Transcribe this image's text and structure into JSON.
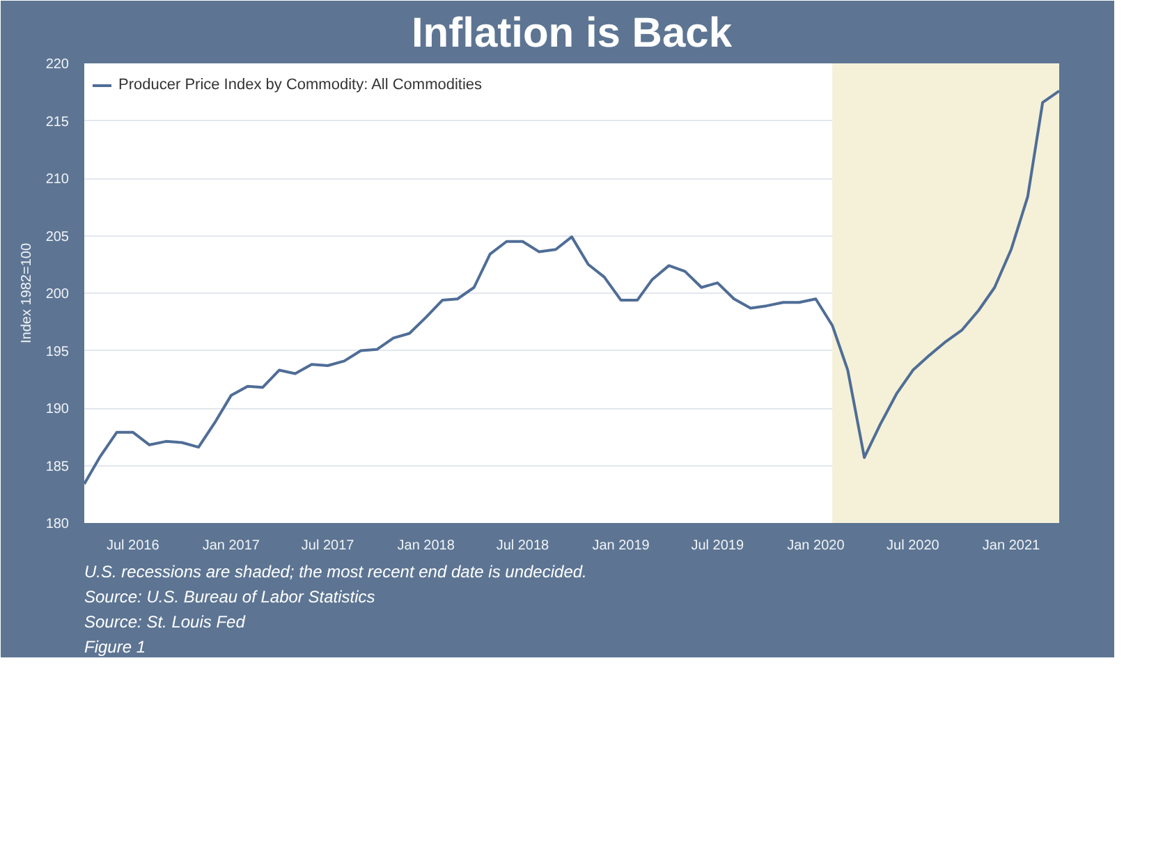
{
  "chart_data": {
    "type": "line",
    "title": "Inflation is Back",
    "ylabel": "Index 1982=100",
    "x": [
      "2016-04",
      "2016-05",
      "2016-06",
      "2016-07",
      "2016-08",
      "2016-09",
      "2016-10",
      "2016-11",
      "2016-12",
      "2017-01",
      "2017-02",
      "2017-03",
      "2017-04",
      "2017-05",
      "2017-06",
      "2017-07",
      "2017-08",
      "2017-09",
      "2017-10",
      "2017-11",
      "2017-12",
      "2018-01",
      "2018-02",
      "2018-03",
      "2018-04",
      "2018-05",
      "2018-06",
      "2018-07",
      "2018-08",
      "2018-09",
      "2018-10",
      "2018-11",
      "2018-12",
      "2019-01",
      "2019-02",
      "2019-03",
      "2019-04",
      "2019-05",
      "2019-06",
      "2019-07",
      "2019-08",
      "2019-09",
      "2019-10",
      "2019-11",
      "2019-12",
      "2020-01",
      "2020-02",
      "2020-03",
      "2020-04",
      "2020-05",
      "2020-06",
      "2020-07",
      "2020-08",
      "2020-09",
      "2020-10",
      "2020-11",
      "2020-12",
      "2021-01",
      "2021-02",
      "2021-03",
      "2021-04"
    ],
    "series": [
      {
        "name": "Producer Price Index by Commodity: All Commodities",
        "color": "#4f6d96",
        "values": [
          183.4,
          185.8,
          187.9,
          187.9,
          186.8,
          187.1,
          187.0,
          186.6,
          188.7,
          191.1,
          191.9,
          191.8,
          193.3,
          193.0,
          193.8,
          193.7,
          194.1,
          195.0,
          195.1,
          196.1,
          196.5,
          197.9,
          199.4,
          199.5,
          200.5,
          203.4,
          204.5,
          204.5,
          203.6,
          203.8,
          204.9,
          202.5,
          201.4,
          199.4,
          199.4,
          201.2,
          202.4,
          201.9,
          200.5,
          200.9,
          199.5,
          198.7,
          198.9,
          199.2,
          199.2,
          199.5,
          197.2,
          193.3,
          185.7,
          188.6,
          191.3,
          193.3,
          194.6,
          195.8,
          196.8,
          198.5,
          200.5,
          203.8,
          208.4,
          216.6,
          217.6
        ]
      }
    ],
    "xlim": [
      "2016-04",
      "2021-04"
    ],
    "xticks": [
      {
        "value": "2016-07",
        "label": "Jul 2016"
      },
      {
        "value": "2017-01",
        "label": "Jan 2017"
      },
      {
        "value": "2017-07",
        "label": "Jul 2017"
      },
      {
        "value": "2018-01",
        "label": "Jan 2018"
      },
      {
        "value": "2018-07",
        "label": "Jul 2018"
      },
      {
        "value": "2019-01",
        "label": "Jan 2019"
      },
      {
        "value": "2019-07",
        "label": "Jul 2019"
      },
      {
        "value": "2020-01",
        "label": "Jan 2020"
      },
      {
        "value": "2020-07",
        "label": "Jul 2020"
      },
      {
        "value": "2021-01",
        "label": "Jan 2021"
      }
    ],
    "ylim": [
      180,
      220
    ],
    "yticks": [
      180,
      185,
      190,
      195,
      200,
      205,
      210,
      215,
      220
    ],
    "bands": [
      {
        "axis": "x",
        "from": "2020-02",
        "to": "2021-04",
        "color": "#f4f1d8"
      }
    ],
    "grid": "y",
    "legend": "top",
    "marker": "none",
    "line_style": "solid",
    "annotations": [
      "U.S. recessions are shaded; the most recent end date is undecided.",
      "Source: U.S. Bureau of Labor Statistics",
      "Source: St. Louis Fed",
      "Figure 1"
    ]
  }
}
